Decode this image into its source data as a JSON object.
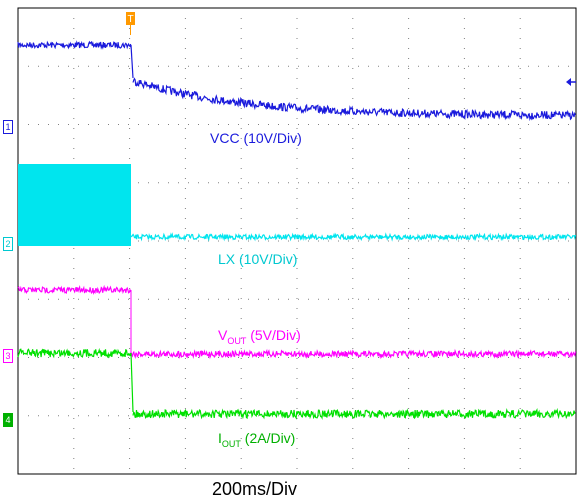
{
  "chart_data": {
    "type": "line",
    "xlabel": "200ms/Div",
    "grid": true,
    "grid_divisions": {
      "x": 10,
      "y": 8
    },
    "trigger_marker": "T",
    "series": [
      {
        "name": "VCC (10V/Div)",
        "channel": "1",
        "color": "#1a1adc",
        "description_before": "high, steady",
        "description_after": "drops then decays exponentially"
      },
      {
        "name": "LX (10V/Div)",
        "channel": "2",
        "color": "#00e5ee",
        "description_before": "switching",
        "description_after": "low, steady"
      },
      {
        "name_main": "V",
        "name_sub": "OUT",
        "name_rest": " (5V/Div)",
        "channel": "3",
        "color": "#ff00ff",
        "description_before": "high",
        "description_after": "falls to low"
      },
      {
        "name_main": "I",
        "name_sub": "OUT",
        "name_rest": " (2A/Div)",
        "channel": "4",
        "color": "#00e000",
        "description_before": "mid",
        "description_after": "falls to low"
      }
    ]
  },
  "labels": {
    "vcc": "VCC (10V/Div)",
    "lx": "LX (10V/Div)",
    "vout_main": "V",
    "vout_sub": "OUT",
    "vout_rest": " (5V/Div)",
    "iout_main": "I",
    "iout_sub": "OUT",
    "iout_rest": " (2A/Div)",
    "time_div": "200ms/Div",
    "ch1": "1",
    "ch2": "2",
    "ch3": "3",
    "ch4": "4",
    "trigger": "T"
  }
}
